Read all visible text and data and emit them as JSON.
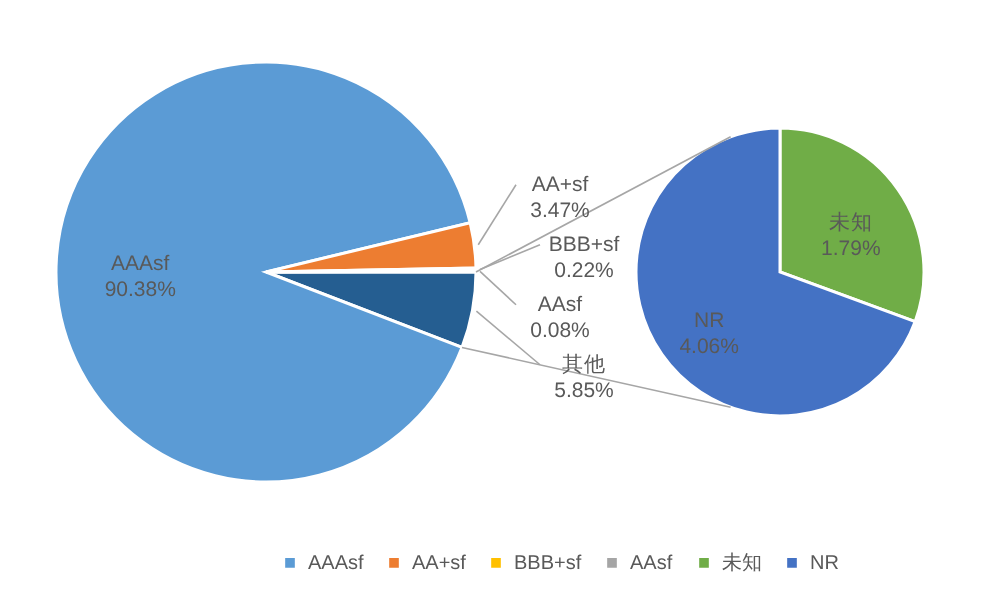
{
  "chart_data": [
    {
      "type": "pie",
      "categories": [
        "其他",
        "AAAsf",
        "AA+sf",
        "BBB+sf",
        "AAsf"
      ],
      "values": [
        5.85,
        90.38,
        3.47,
        0.22,
        0.08
      ],
      "colors": [
        "#255e91",
        "#5b9bd5",
        "#ed7d31",
        "#ffc000",
        "#a5a5a5"
      ],
      "value_labels": [
        "5.85%",
        "90.38%",
        "3.47%",
        "0.22%",
        "0.08%"
      ],
      "legend": "bottom"
    },
    {
      "type": "pie",
      "categories": [
        "未知",
        "NR"
      ],
      "values": [
        1.79,
        4.06
      ],
      "colors": [
        "#70ad47",
        "#4472c4"
      ],
      "value_labels": [
        "1.79%",
        "4.06%"
      ],
      "legend": "bottom"
    }
  ]
}
